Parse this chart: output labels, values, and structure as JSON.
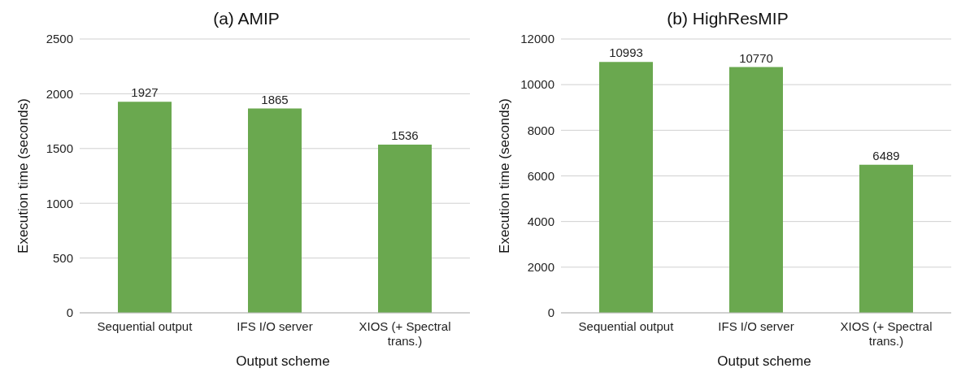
{
  "chart_data": [
    {
      "type": "bar",
      "title": "(a) AMIP",
      "xlabel": "Output scheme",
      "ylabel": "Execution time (seconds)",
      "categories": [
        "Sequential output",
        "IFS I/O server",
        "XIOS (+ Spectral trans.)"
      ],
      "values": [
        1927,
        1865,
        1536
      ],
      "color": "#6aa84f",
      "ylim": [
        0,
        2500
      ],
      "yticks": [
        0,
        500,
        1000,
        1500,
        2000,
        2500
      ],
      "grid": "y",
      "data_labels": true,
      "legend": false
    },
    {
      "type": "bar",
      "title": "(b) HighResMIP",
      "xlabel": "Output scheme",
      "ylabel": "Execution time (seconds)",
      "categories": [
        "Sequential output",
        "IFS I/O server",
        "XIOS (+ Spectral trans.)"
      ],
      "values": [
        10993,
        10770,
        6489
      ],
      "color": "#6aa84f",
      "ylim": [
        0,
        12000
      ],
      "yticks": [
        0,
        2000,
        4000,
        6000,
        8000,
        10000,
        12000
      ],
      "grid": "y",
      "data_labels": true,
      "legend": false
    }
  ]
}
